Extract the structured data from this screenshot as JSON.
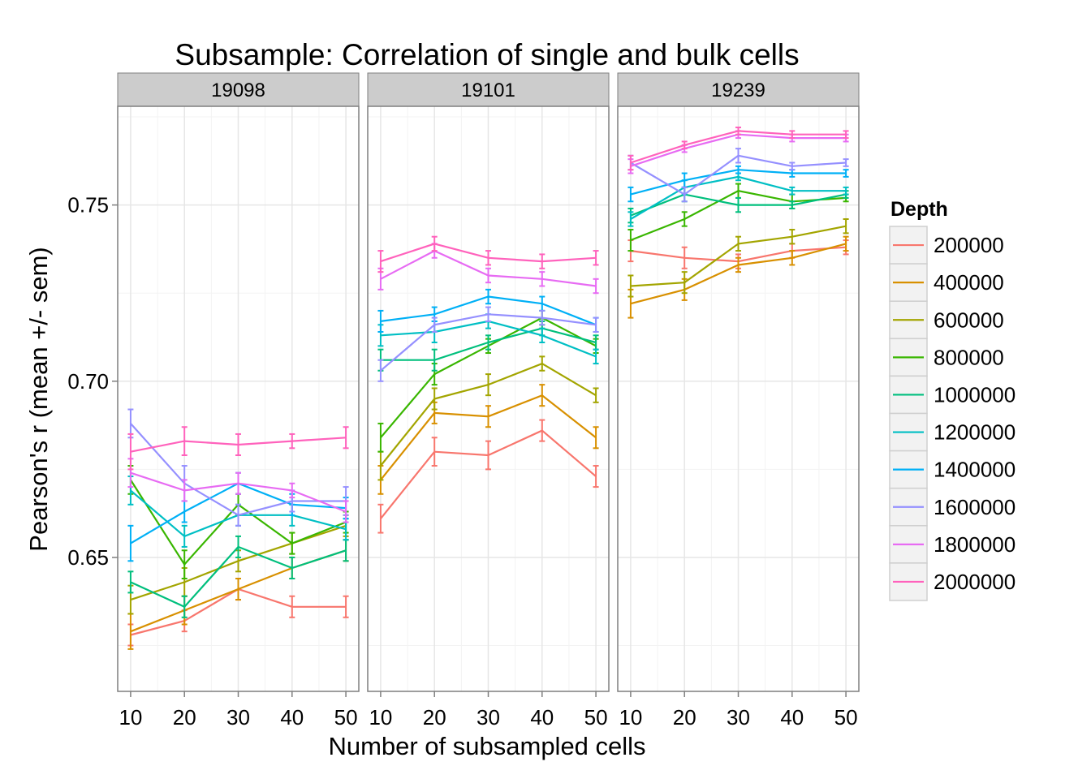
{
  "chart_data": {
    "type": "line",
    "title": "Subsample: Correlation of single and bulk cells",
    "xlabel": "Number of subsampled cells",
    "ylabel": "Pearson's r (mean +/- sem)",
    "x": [
      10,
      20,
      30,
      40,
      50
    ],
    "x_ticks": [
      "10",
      "20",
      "30",
      "40",
      "50"
    ],
    "y_ticks": [
      0.65,
      0.7,
      0.75
    ],
    "y_tick_labels": [
      "0.65",
      "0.70",
      "0.75"
    ],
    "ylim": [
      0.612,
      0.778
    ],
    "xlim": [
      7.6,
      52.4
    ],
    "grid": true,
    "legend": {
      "title": "Depth",
      "position": "right"
    },
    "depths": [
      "200000",
      "400000",
      "600000",
      "800000",
      "1000000",
      "1200000",
      "1400000",
      "1600000",
      "1800000",
      "2000000"
    ],
    "colors": [
      "#F8766D",
      "#D89000",
      "#A3A500",
      "#39B600",
      "#00BF7D",
      "#00BFC4",
      "#00B0F6",
      "#9590FF",
      "#E76BF3",
      "#FF62BC"
    ],
    "panels": [
      {
        "label": "19098",
        "series": [
          {
            "depth": "200000",
            "values": [
              0.628,
              0.632,
              0.641,
              0.636,
              0.636
            ],
            "sem": [
              0.003,
              0.003,
              0.003,
              0.003,
              0.003
            ]
          },
          {
            "depth": "400000",
            "values": [
              0.629,
              0.635,
              0.641,
              0.647,
              0.652
            ],
            "sem": [
              0.005,
              0.004,
              0.003,
              0.003,
              0.003
            ]
          },
          {
            "depth": "600000",
            "values": [
              0.638,
              0.643,
              0.649,
              0.654,
              0.659
            ],
            "sem": [
              0.004,
              0.004,
              0.003,
              0.003,
              0.003
            ]
          },
          {
            "depth": "800000",
            "values": [
              0.672,
              0.648,
              0.665,
              0.654,
              0.66
            ],
            "sem": [
              0.004,
              0.004,
              0.003,
              0.003,
              0.003
            ]
          },
          {
            "depth": "1000000",
            "values": [
              0.643,
              0.636,
              0.653,
              0.647,
              0.652
            ],
            "sem": [
              0.003,
              0.003,
              0.003,
              0.003,
              0.003
            ]
          },
          {
            "depth": "1200000",
            "values": [
              0.669,
              0.656,
              0.662,
              0.662,
              0.658
            ],
            "sem": [
              0.004,
              0.003,
              0.003,
              0.003,
              0.003
            ]
          },
          {
            "depth": "1400000",
            "values": [
              0.654,
              0.663,
              0.671,
              0.665,
              0.664
            ],
            "sem": [
              0.005,
              0.003,
              0.003,
              0.003,
              0.003
            ]
          },
          {
            "depth": "1600000",
            "values": [
              0.688,
              0.671,
              0.662,
              0.666,
              0.666
            ],
            "sem": [
              0.004,
              0.005,
              0.003,
              0.003,
              0.004
            ]
          },
          {
            "depth": "1800000",
            "values": [
              0.674,
              0.669,
              0.671,
              0.669,
              0.663
            ],
            "sem": [
              0.004,
              0.003,
              0.003,
              0.002,
              0.003
            ]
          },
          {
            "depth": "2000000",
            "values": [
              0.68,
              0.683,
              0.682,
              0.683,
              0.684
            ],
            "sem": [
              0.005,
              0.004,
              0.003,
              0.002,
              0.003
            ]
          }
        ]
      },
      {
        "label": "19101",
        "series": [
          {
            "depth": "200000",
            "values": [
              0.661,
              0.68,
              0.679,
              0.686,
              0.673
            ],
            "sem": [
              0.004,
              0.004,
              0.004,
              0.003,
              0.003
            ]
          },
          {
            "depth": "400000",
            "values": [
              0.672,
              0.691,
              0.69,
              0.696,
              0.684
            ],
            "sem": [
              0.004,
              0.003,
              0.003,
              0.003,
              0.003
            ]
          },
          {
            "depth": "600000",
            "values": [
              0.676,
              0.695,
              0.699,
              0.705,
              0.696
            ],
            "sem": [
              0.004,
              0.003,
              0.003,
              0.002,
              0.002
            ]
          },
          {
            "depth": "800000",
            "values": [
              0.684,
              0.702,
              0.71,
              0.718,
              0.71
            ],
            "sem": [
              0.004,
              0.003,
              0.002,
              0.002,
              0.002
            ]
          },
          {
            "depth": "1000000",
            "values": [
              0.706,
              0.706,
              0.711,
              0.715,
              0.711
            ],
            "sem": [
              0.003,
              0.003,
              0.002,
              0.002,
              0.002
            ]
          },
          {
            "depth": "1200000",
            "values": [
              0.713,
              0.714,
              0.717,
              0.713,
              0.707
            ],
            "sem": [
              0.003,
              0.003,
              0.002,
              0.002,
              0.002
            ]
          },
          {
            "depth": "1400000",
            "values": [
              0.717,
              0.719,
              0.724,
              0.722,
              0.716
            ],
            "sem": [
              0.003,
              0.002,
              0.002,
              0.002,
              0.002
            ]
          },
          {
            "depth": "1600000",
            "values": [
              0.703,
              0.716,
              0.719,
              0.718,
              0.716
            ],
            "sem": [
              0.003,
              0.002,
              0.002,
              0.002,
              0.002
            ]
          },
          {
            "depth": "1800000",
            "values": [
              0.729,
              0.737,
              0.73,
              0.729,
              0.727
            ],
            "sem": [
              0.003,
              0.002,
              0.002,
              0.002,
              0.002
            ]
          },
          {
            "depth": "2000000",
            "values": [
              0.734,
              0.739,
              0.735,
              0.734,
              0.735
            ],
            "sem": [
              0.003,
              0.002,
              0.002,
              0.002,
              0.002
            ]
          }
        ]
      },
      {
        "label": "19239",
        "series": [
          {
            "depth": "200000",
            "values": [
              0.737,
              0.735,
              0.734,
              0.737,
              0.738
            ],
            "sem": [
              0.003,
              0.003,
              0.002,
              0.002,
              0.002
            ]
          },
          {
            "depth": "400000",
            "values": [
              0.722,
              0.726,
              0.733,
              0.735,
              0.739
            ],
            "sem": [
              0.004,
              0.003,
              0.002,
              0.002,
              0.002
            ]
          },
          {
            "depth": "600000",
            "values": [
              0.727,
              0.728,
              0.739,
              0.741,
              0.744
            ],
            "sem": [
              0.003,
              0.003,
              0.002,
              0.002,
              0.002
            ]
          },
          {
            "depth": "800000",
            "values": [
              0.74,
              0.746,
              0.754,
              0.751,
              0.752
            ],
            "sem": [
              0.003,
              0.002,
              0.002,
              0.002,
              0.001
            ]
          },
          {
            "depth": "1000000",
            "values": [
              0.747,
              0.753,
              0.75,
              0.75,
              0.753
            ],
            "sem": [
              0.002,
              0.002,
              0.002,
              0.001,
              0.001
            ]
          },
          {
            "depth": "1200000",
            "values": [
              0.746,
              0.755,
              0.758,
              0.754,
              0.754
            ],
            "sem": [
              0.002,
              0.002,
              0.001,
              0.001,
              0.001
            ]
          },
          {
            "depth": "1400000",
            "values": [
              0.753,
              0.757,
              0.76,
              0.759,
              0.759
            ],
            "sem": [
              0.002,
              0.002,
              0.001,
              0.001,
              0.001
            ]
          },
          {
            "depth": "1600000",
            "values": [
              0.762,
              0.753,
              0.764,
              0.761,
              0.762
            ],
            "sem": [
              0.002,
              0.002,
              0.002,
              0.001,
              0.001
            ]
          },
          {
            "depth": "1800000",
            "values": [
              0.761,
              0.766,
              0.77,
              0.769,
              0.769
            ],
            "sem": [
              0.002,
              0.001,
              0.001,
              0.001,
              0.001
            ]
          },
          {
            "depth": "2000000",
            "values": [
              0.762,
              0.767,
              0.771,
              0.77,
              0.77
            ],
            "sem": [
              0.002,
              0.001,
              0.001,
              0.001,
              0.001
            ]
          }
        ]
      }
    ]
  }
}
